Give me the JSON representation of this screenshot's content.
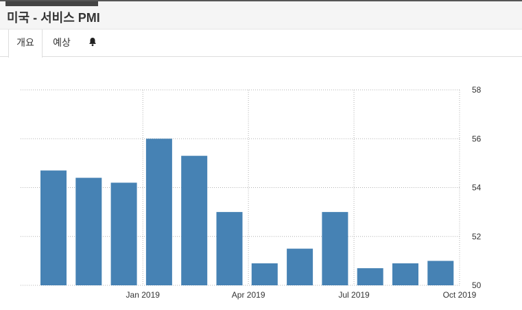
{
  "header": {
    "title": "미국 - 서비스 PMI"
  },
  "tabs": [
    {
      "label": "개요",
      "active": true
    },
    {
      "label": "예상",
      "active": false
    },
    {
      "label": "",
      "icon": "bell-icon",
      "active": false
    }
  ],
  "colors": {
    "bar": "#4682b4",
    "grid": "#b0b0b0",
    "tab_border": "#dddddd"
  },
  "chart_data": {
    "type": "bar",
    "categories": [
      "Nov 2018",
      "Dec 2018",
      "Jan 2019",
      "Feb 2019",
      "Mar 2019",
      "Apr 2019",
      "May 2019",
      "Jun 2019",
      "Jul 2019",
      "Aug 2019",
      "Sep 2019",
      "Oct 2019"
    ],
    "values": [
      54.7,
      54.4,
      54.2,
      56.0,
      55.3,
      53.0,
      50.9,
      51.5,
      53.0,
      50.7,
      50.9,
      51.0
    ],
    "x_tick_labels": [
      "Jan 2019",
      "Apr 2019",
      "Jul 2019",
      "Oct 2019"
    ],
    "y_ticks": [
      50,
      52,
      54,
      56,
      58
    ],
    "ylim": [
      50,
      58
    ],
    "y_axis_position": "right",
    "grid": true,
    "title": "",
    "xlabel": "",
    "ylabel": ""
  }
}
